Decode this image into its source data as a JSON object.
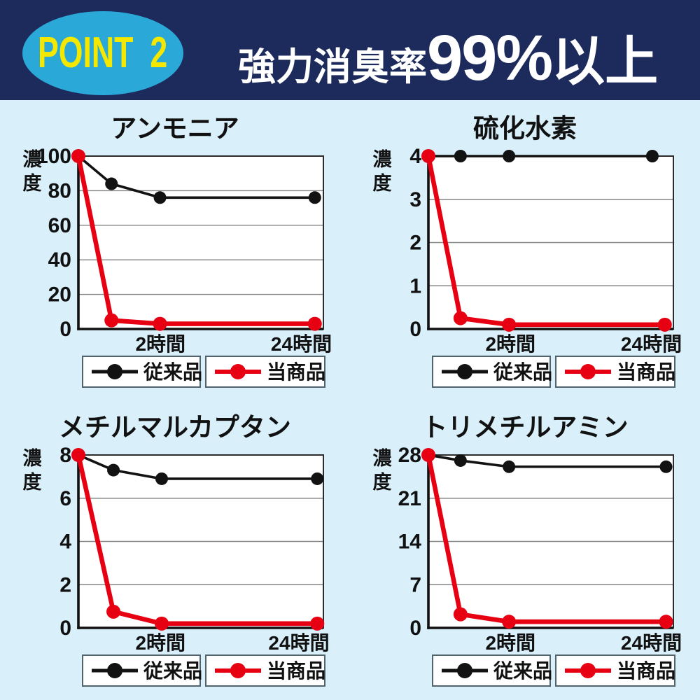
{
  "header": {
    "badge_label": "POINT 2",
    "title_prefix": "強力消臭率",
    "title_number": "99%",
    "title_suffix": "以上"
  },
  "colors": {
    "header_bg": "#1d2b5c",
    "badge_bg": "#2aa9d8",
    "badge_text": "#f4e800",
    "header_text": "#ffffff",
    "page_bg": "#d9f0fb",
    "plot_bg": "#ffffff",
    "gridline": "#848484",
    "plot_border": "#2b2b2b",
    "axis": "#111111",
    "legend_border": "#51636d",
    "conventional": "#121212",
    "product": "#e60012"
  },
  "chart_data": [
    {
      "type": "line",
      "title": "アンモニア",
      "y_axis_label": "濃度",
      "ylim": [
        0,
        100
      ],
      "y_ticks": [
        0,
        20,
        40,
        60,
        80,
        100
      ],
      "x_tick_labels": [
        "2時間",
        "24時間"
      ],
      "x_tick_positions": [
        0.335,
        0.91
      ],
      "x_positions": [
        0,
        0.135,
        0.333,
        0.965
      ],
      "grid": true,
      "legend_position": "bottom",
      "series": [
        {
          "name": "従来品",
          "color": "#121212",
          "values": [
            100,
            84,
            76,
            76
          ]
        },
        {
          "name": "当商品",
          "color": "#e60012",
          "values": [
            100,
            5,
            3,
            3
          ]
        }
      ]
    },
    {
      "type": "line",
      "title": "硫化水素",
      "y_axis_label": "濃度",
      "ylim": [
        0,
        4
      ],
      "y_ticks": [
        0,
        1,
        2,
        3,
        4
      ],
      "x_tick_labels": [
        "2時間",
        "24時間"
      ],
      "x_tick_positions": [
        0.335,
        0.91
      ],
      "x_positions": [
        0,
        0.131,
        0.329,
        0.965
      ],
      "grid": true,
      "legend_position": "bottom",
      "series": [
        {
          "name": "従来品",
          "color": "#121212",
          "values": [
            4,
            4,
            4,
            4
          ],
          "x": [
            0,
            0.131,
            0.329,
            0.914
          ]
        },
        {
          "name": "当商品",
          "color": "#e60012",
          "values": [
            4,
            0.25,
            0.1,
            0.1
          ],
          "x": [
            0,
            0.131,
            0.329,
            0.965
          ]
        }
      ]
    },
    {
      "type": "line",
      "title": "メチルマルカプタン",
      "y_axis_label": "濃度",
      "ylim": [
        0,
        8
      ],
      "y_ticks": [
        0,
        2,
        4,
        6,
        8
      ],
      "x_tick_labels": [
        "2時間",
        "24時間"
      ],
      "x_tick_positions": [
        0.335,
        0.9
      ],
      "x_positions": [
        0,
        0.143,
        0.34,
        0.975
      ],
      "grid": true,
      "legend_position": "bottom",
      "series": [
        {
          "name": "従来品",
          "color": "#121212",
          "values": [
            8,
            7.3,
            6.9,
            6.9
          ]
        },
        {
          "name": "当商品",
          "color": "#e60012",
          "values": [
            8,
            0.75,
            0.2,
            0.2
          ]
        }
      ]
    },
    {
      "type": "line",
      "title": "トリメチルアミン",
      "y_axis_label": "濃度",
      "ylim": [
        0,
        28
      ],
      "y_ticks": [
        0,
        7,
        14,
        21,
        28
      ],
      "x_tick_labels": [
        "2時間",
        "24時間"
      ],
      "x_tick_positions": [
        0.335,
        0.91
      ],
      "x_positions": [
        0,
        0.131,
        0.329,
        0.97
      ],
      "grid": true,
      "legend_position": "bottom",
      "series": [
        {
          "name": "従来品",
          "color": "#121212",
          "values": [
            28,
            27.1,
            26.1,
            26.1
          ]
        },
        {
          "name": "当商品",
          "color": "#e60012",
          "values": [
            28,
            2.2,
            1,
            1
          ]
        }
      ]
    }
  ]
}
